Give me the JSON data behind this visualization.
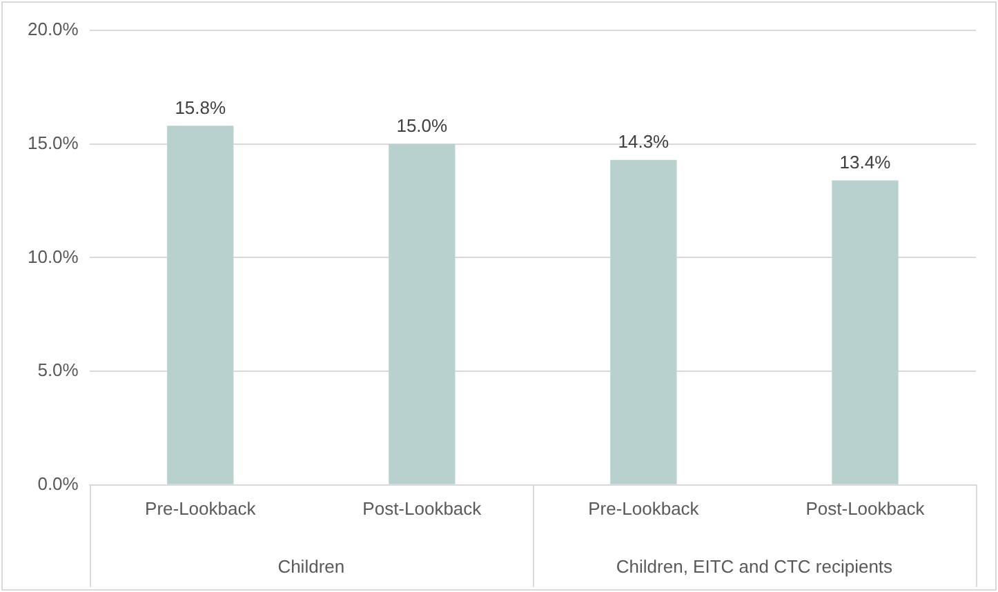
{
  "chart_data": {
    "type": "bar",
    "categories": [
      "Pre-Lookback",
      "Post-Lookback",
      "Pre-Lookback",
      "Post-Lookback"
    ],
    "values": [
      15.8,
      15.0,
      14.3,
      13.4
    ],
    "color": "#b8d1cf",
    "value_labels": [
      "15.8%",
      "15.0%",
      "14.3%",
      "13.4%"
    ],
    "ylim": [
      0,
      20
    ],
    "yticks": [
      {
        "value": 0,
        "label": "0.0%"
      },
      {
        "value": 5,
        "label": "5.0%"
      },
      {
        "value": 10,
        "label": "10.0%"
      },
      {
        "value": 15,
        "label": "15.0%"
      },
      {
        "value": 20,
        "label": "20.0%"
      }
    ],
    "grid": "y",
    "annotations": [
      "Children",
      "Children, EITC and CTC recipients"
    ]
  }
}
